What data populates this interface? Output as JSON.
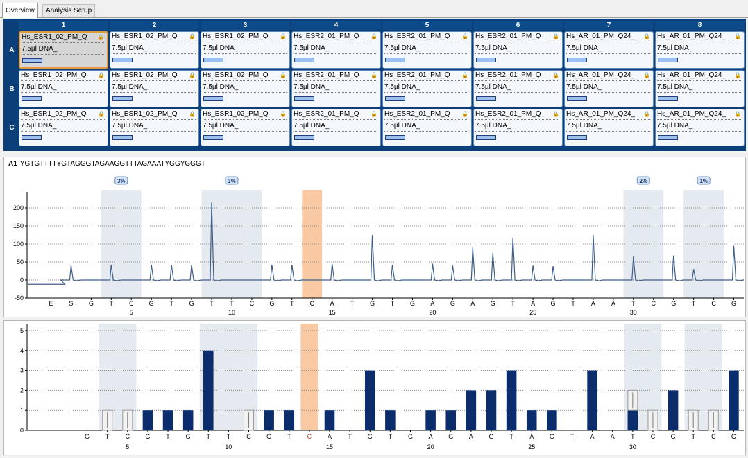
{
  "tabs": [
    {
      "label": "Overview",
      "active": true
    },
    {
      "label": "Analysis Setup",
      "active": false
    }
  ],
  "plate": {
    "columns": [
      "1",
      "2",
      "3",
      "4",
      "5",
      "6",
      "7",
      "8"
    ],
    "rows": [
      "A",
      "B",
      "C"
    ],
    "assays": [
      "Hs_ESR1_02_PM_Q",
      "Hs_ESR1_02_PM_Q",
      "Hs_ESR1_02_PM_Q",
      "Hs_ESR2_01_PM_Q",
      "Hs_ESR2_01_PM_Q",
      "Hs_ESR2_01_PM_Q",
      "Hs_AR_01_PM_Q24_",
      "Hs_AR_01_PM_Q24_"
    ],
    "sample": "7.5µl DNA_",
    "selected_well": "A1",
    "lock_icon": "lock-icon"
  },
  "pyrogram": {
    "well": "A1",
    "sequence": "YGTGTTTTYGTAGGGTAGAAGGTTTAGAAATYGGYGGGT",
    "dispensations": [
      "E",
      "S",
      "G",
      "T",
      "C",
      "G",
      "T",
      "G",
      "T",
      "T",
      "C",
      "G",
      "T",
      "C",
      "A",
      "T",
      "G",
      "T",
      "G",
      "A",
      "G",
      "A",
      "G",
      "T",
      "A",
      "G",
      "T",
      "A",
      "A",
      "T",
      "C",
      "G",
      "T",
      "C",
      "G"
    ],
    "variable_regions": [
      {
        "start": 3,
        "end": 4,
        "label": "3%"
      },
      {
        "start": 8,
        "end": 10,
        "label": "3%"
      },
      {
        "start": 29,
        "end": 30,
        "label": "2%"
      },
      {
        "start": 32,
        "end": 33,
        "label": "1%"
      }
    ],
    "bisulfite_control_index": 13,
    "y_ticks": [
      200,
      150,
      100,
      50,
      0,
      -50
    ],
    "x_ticks": [
      5,
      10,
      15,
      20,
      25,
      30
    ],
    "baseline": -12,
    "peak_heights": [
      0,
      40,
      0,
      42,
      0,
      42,
      42,
      42,
      215,
      0,
      0,
      42,
      42,
      0,
      45,
      0,
      125,
      42,
      0,
      45,
      40,
      90,
      75,
      118,
      40,
      38,
      0,
      125,
      0,
      65,
      0,
      68,
      30,
      0,
      95
    ],
    "colors": {
      "line": "#3e5f8a",
      "region": "#e5eaf1",
      "control": "#f9c9a3"
    }
  },
  "histogram": {
    "dispensations": [
      "G",
      "T",
      "C",
      "G",
      "T",
      "G",
      "T",
      "T",
      "C",
      "G",
      "T",
      "C",
      "A",
      "T",
      "G",
      "T",
      "G",
      "A",
      "G",
      "A",
      "G",
      "T",
      "A",
      "G",
      "T",
      "A",
      "A",
      "T",
      "C",
      "G",
      "T",
      "C",
      "G"
    ],
    "bars": [
      0,
      0,
      0,
      1,
      1,
      1,
      4,
      0,
      0,
      1,
      1,
      0,
      1,
      0,
      3,
      1,
      0,
      1,
      1,
      2,
      2,
      3,
      1,
      1,
      0,
      3,
      0,
      1,
      0,
      2,
      0,
      0,
      3
    ],
    "ghost_bars": [
      1,
      2,
      8,
      27,
      28,
      30,
      31
    ],
    "y_ticks": [
      5,
      4,
      3,
      2,
      1,
      0
    ],
    "x_ticks": [
      5,
      10,
      15,
      20,
      25,
      30
    ],
    "control_index": 11,
    "colors": {
      "bar": "#0b2d6b",
      "control_label": "#c0392b"
    }
  }
}
